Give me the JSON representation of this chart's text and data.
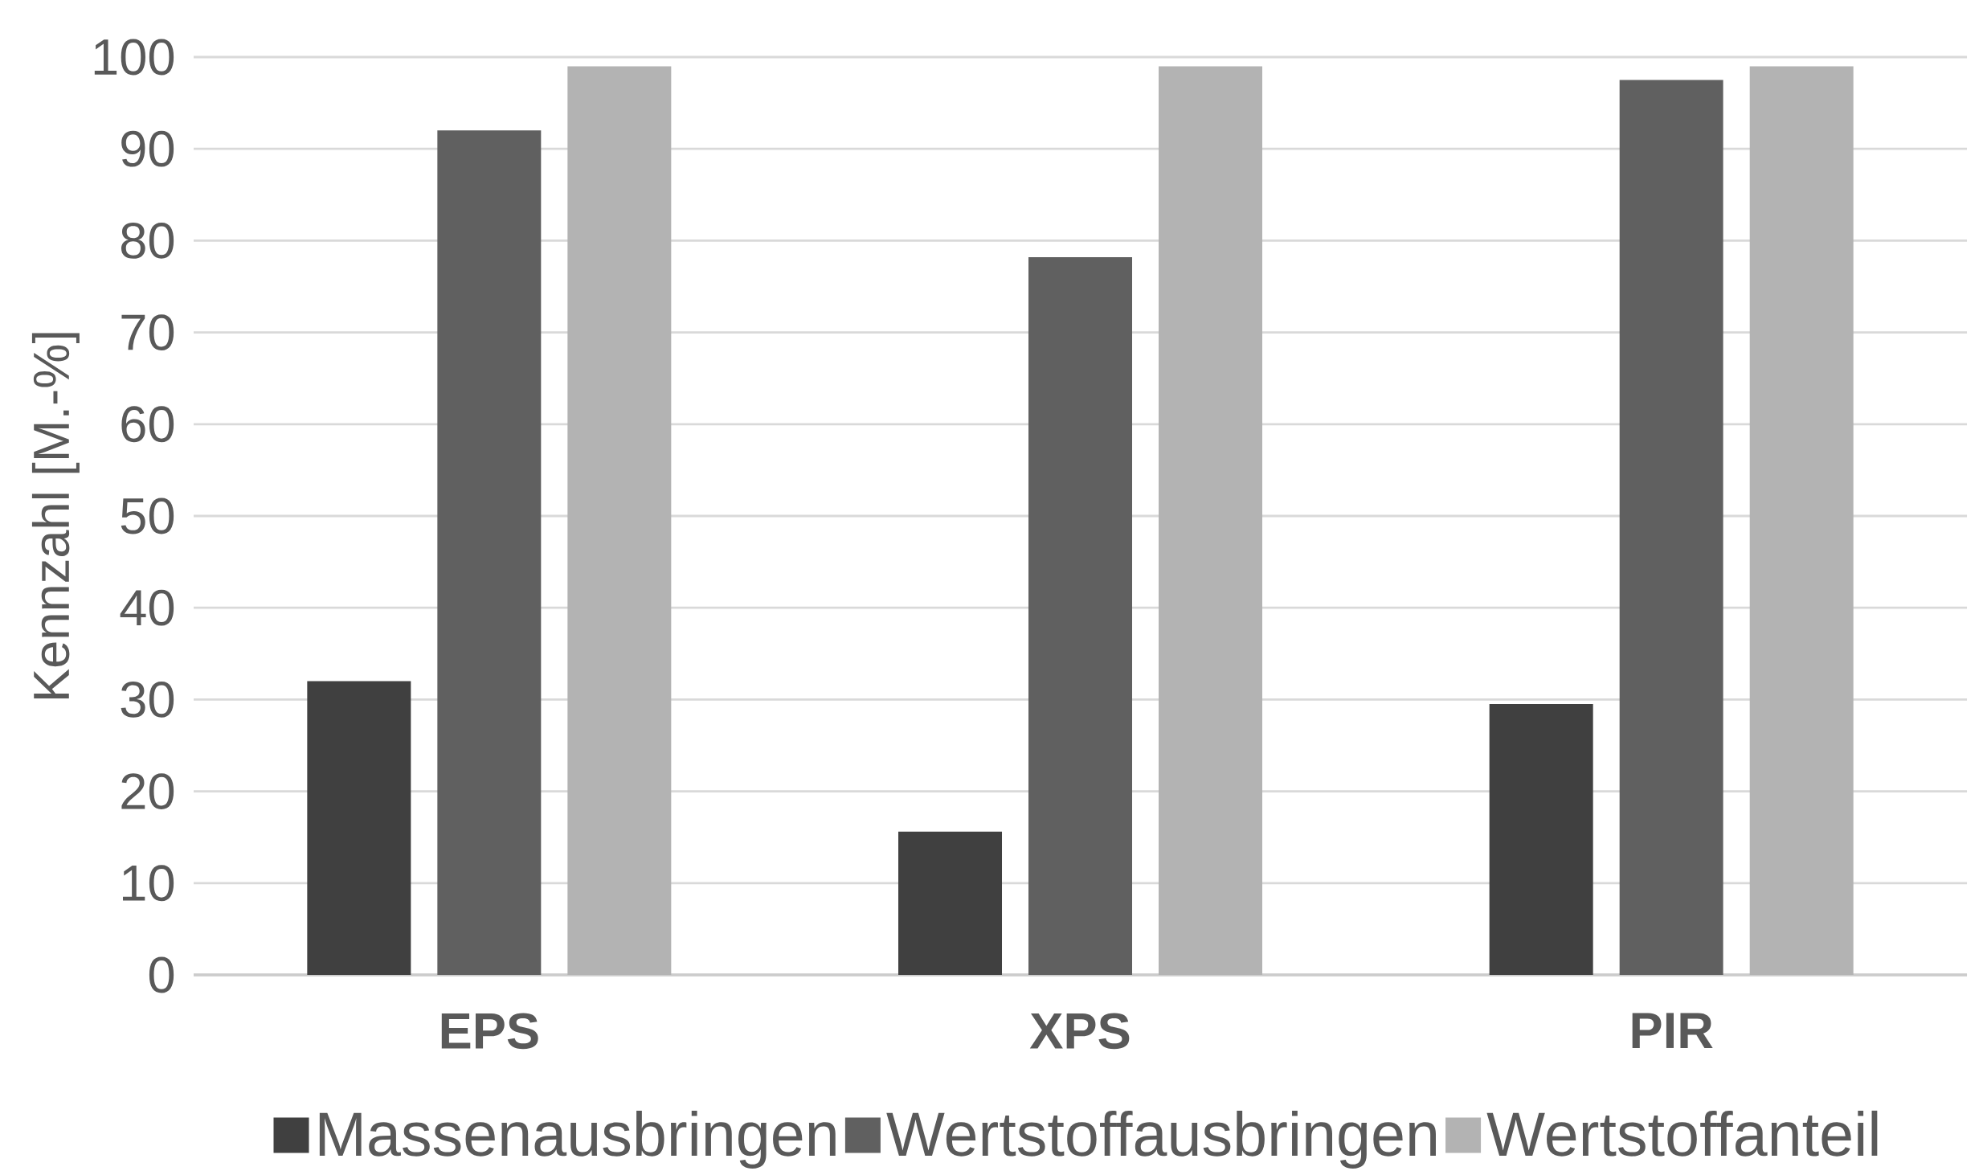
{
  "chart_data": {
    "type": "bar",
    "ylabel": "Kennzahl [M.-%]",
    "categories": [
      "EPS",
      "XPS",
      "PIR"
    ],
    "series": [
      {
        "name": "Massenausbringen",
        "color": "#404040",
        "values": [
          32,
          15.6,
          29.5
        ]
      },
      {
        "name": "Wertstoffausbringen",
        "color": "#606060",
        "values": [
          92,
          78.2,
          97.5
        ]
      },
      {
        "name": "Wertstoffanteil",
        "color": "#b3b3b3",
        "values": [
          99,
          99,
          99
        ]
      }
    ],
    "ylim": [
      0,
      100
    ],
    "yticks": [
      0,
      10,
      20,
      30,
      40,
      50,
      60,
      70,
      80,
      90,
      100
    ],
    "grid": "y",
    "legend": "bottom"
  }
}
